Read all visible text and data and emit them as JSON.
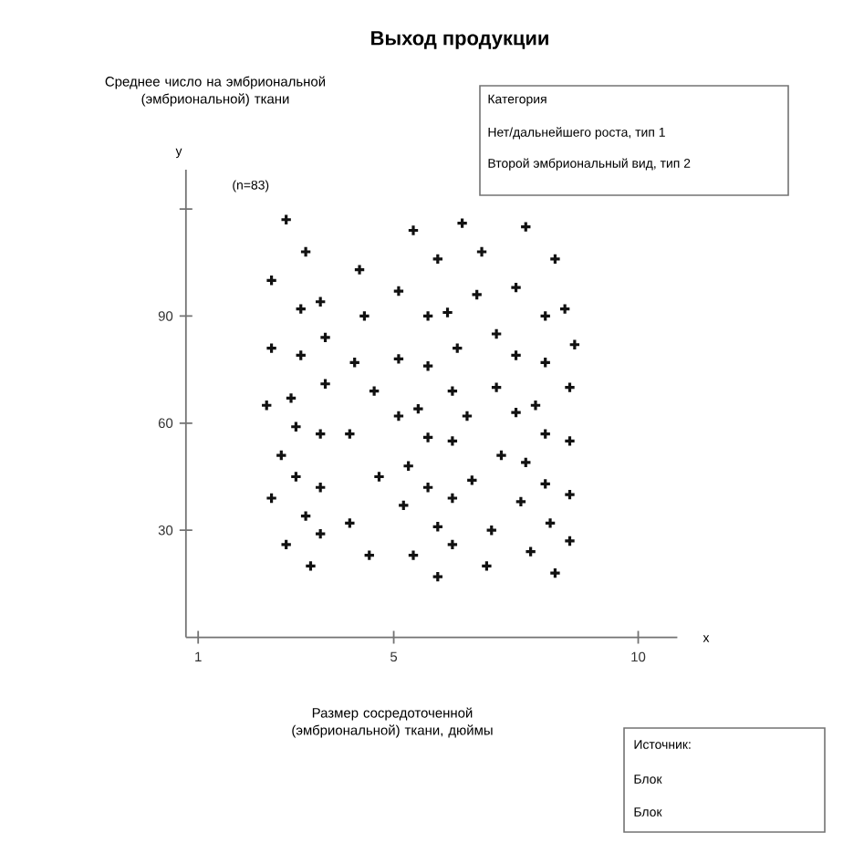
{
  "chart_data": {
    "type": "scatter",
    "title": "Выход продукции",
    "ylabel": "Среднее число на эмбриональной (эмбриональной) ткани",
    "xlabel": "Размер сосредоточенной (эмбриональной) ткани, дюймы",
    "annotations": [
      "y",
      "x",
      "(n=83)",
      "Категория",
      "Нет/дальнейшего роста, тип 1",
      "Второй эмбриональный вид, тип 2",
      "Источник:",
      "Блок",
      "Блок"
    ],
    "x": [
      2.8,
      5.4,
      6.4,
      7.7,
      3.2,
      5.9,
      6.8,
      8.3,
      2.5,
      4.3,
      5.1,
      6.7,
      7.5,
      3.1,
      3.5,
      4.4,
      5.7,
      6.1,
      8.1,
      8.5,
      7.1,
      2.5,
      3.6,
      3.1,
      4.2,
      5.1,
      5.7,
      6.3,
      7.5,
      8.1,
      8.7,
      3.6,
      4.6,
      6.2,
      7.1,
      8.6,
      2.4,
      2.9,
      5.1,
      5.5,
      6.5,
      7.5,
      7.9,
      3.0,
      3.5,
      4.1,
      5.7,
      6.2,
      8.1,
      8.6,
      2.7,
      7.2,
      7.7,
      3.0,
      3.5,
      4.7,
      5.3,
      5.7,
      6.6,
      8.1,
      2.5,
      6.2,
      7.6,
      8.6,
      3.2,
      5.2,
      3.5,
      4.1,
      5.9,
      7.0,
      8.2,
      2.8,
      4.5,
      5.4,
      6.2,
      7.8,
      8.6,
      3.3,
      5.9,
      6.9,
      8.3
    ],
    "values": [
      117,
      114,
      116,
      115,
      108,
      106,
      108,
      106,
      100,
      103,
      97,
      96,
      98,
      92,
      94,
      90,
      90,
      91,
      90,
      92,
      85,
      81,
      84,
      79,
      77,
      78,
      76,
      81,
      79,
      77,
      82,
      71,
      69,
      69,
      70,
      70,
      65,
      67,
      62,
      64,
      62,
      63,
      65,
      59,
      57,
      57,
      56,
      55,
      57,
      55,
      51,
      51,
      49,
      45,
      42,
      45,
      48,
      42,
      44,
      43,
      39,
      39,
      38,
      40,
      34,
      37,
      29,
      32,
      31,
      30,
      32,
      26,
      23,
      23,
      26,
      24,
      27,
      20,
      17,
      20,
      18
    ],
    "color": "#111111",
    "marker": "cross",
    "xlim": [
      0.75,
      10.8
    ],
    "ylim": [
      0,
      131
    ],
    "xticks": [
      1,
      5,
      10
    ],
    "yticks": [
      30,
      60,
      90,
      {
        "value": 120,
        "label": null
      }
    ]
  }
}
